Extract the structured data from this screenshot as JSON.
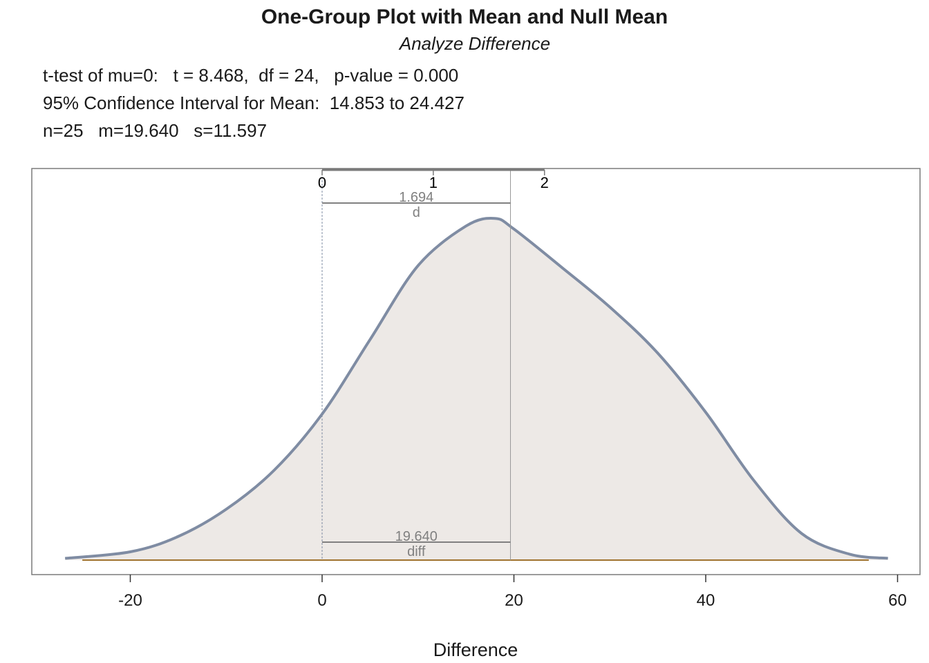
{
  "chart_data": {
    "type": "area",
    "title": "One-Group Plot with Mean and Null Mean",
    "subtitle": "Analyze Difference",
    "stats_lines": [
      "t-test of mu=0:   t = 8.468,  df = 24,   p-value = 0.000",
      "95% Confidence Interval for Mean:  14.853 to 24.427",
      "n=25   m=19.640   s=11.597"
    ],
    "xlabel": "Difference",
    "ylabel": "",
    "xlim": [
      -30,
      62
    ],
    "x_ticks": [
      -20,
      0,
      20,
      40,
      60
    ],
    "x_tick_labels": [
      "-20",
      "0",
      "20",
      "40",
      "60"
    ],
    "top_axis_ticks": [
      0,
      1,
      2
    ],
    "top_axis_tick_labels": [
      "0",
      "1",
      "2"
    ],
    "null_mean": 0,
    "mean": 19.64,
    "effect_size_d": 1.694,
    "effect_label_top_value": "1.694",
    "effect_label_top_name": "d",
    "effect_label_bottom_value": "19.640",
    "effect_label_bottom_name": "diff",
    "density_curve": {
      "x": [
        -26.8,
        -20,
        -15,
        -10,
        -5,
        0,
        5,
        10,
        15,
        18,
        20,
        25,
        30,
        35,
        40,
        45,
        50,
        55,
        59
      ],
      "y": [
        0.0003,
        0.0014,
        0.004,
        0.0086,
        0.0152,
        0.0247,
        0.0373,
        0.0498,
        0.0565,
        0.0578,
        0.056,
        0.0495,
        0.0428,
        0.035,
        0.025,
        0.0135,
        0.0045,
        0.001,
        0.0003
      ]
    },
    "colors": {
      "curve": "#7f8ca3",
      "fill": "#ede9e6",
      "baseline": "#a0732e",
      "annotation": "#808080",
      "frame": "#7a7a7a"
    },
    "grid": false,
    "legend": "none"
  }
}
